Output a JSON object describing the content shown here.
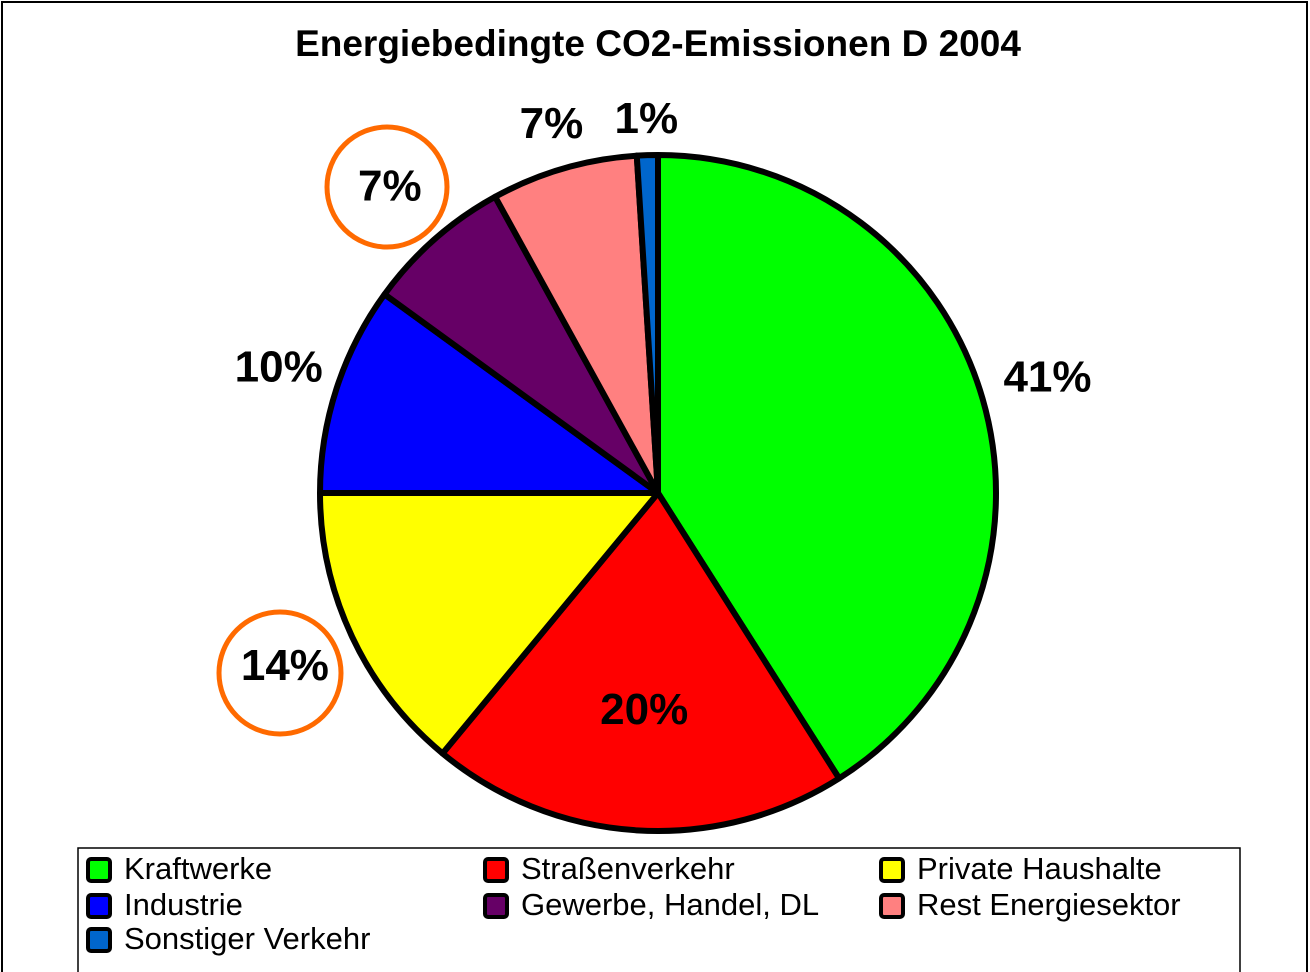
{
  "chart_data": {
    "type": "pie",
    "title": "Energiebedingte CO2-Emissionen D 2004",
    "categories": [
      "Kraftwerke",
      "Straßenverkehr",
      "Private Haushalte",
      "Industrie",
      "Gewerbe, Handel, DL",
      "Rest Energiesektor",
      "Sonstiger Verkehr"
    ],
    "values": [
      41,
      20,
      14,
      10,
      7,
      7,
      1
    ],
    "value_labels": [
      "41%",
      "20%",
      "14%",
      "10%",
      "7%",
      "7%",
      "1%"
    ],
    "colors": [
      "#00ff00",
      "#ff0000",
      "#ffff00",
      "#0000ff",
      "#660066",
      "#ff8080",
      "#0066cc"
    ]
  }
}
